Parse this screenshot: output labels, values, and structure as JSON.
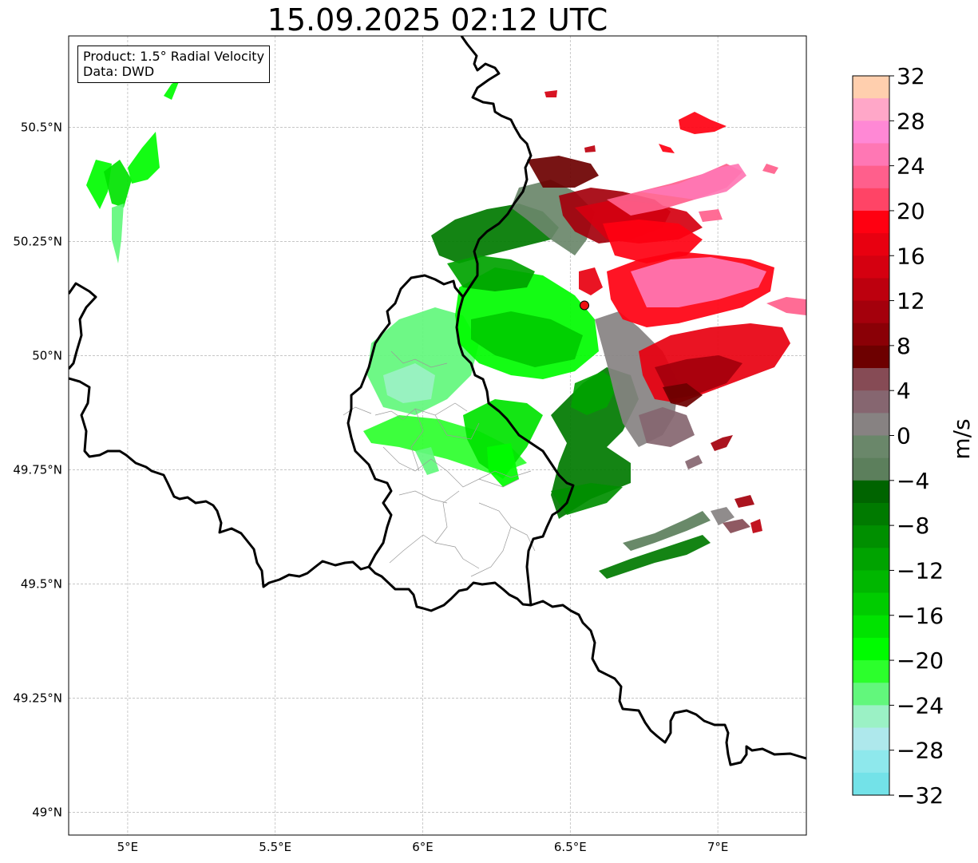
{
  "title": "15.09.2025 02:12 UTC",
  "info_box": {
    "product_line": "Product: 1.5° Radial Velocity",
    "data_line": "Data: DWD"
  },
  "map": {
    "extent": {
      "lon_min": 4.8,
      "lon_max": 7.3,
      "lat_min": 48.95,
      "lat_max": 50.7
    },
    "lon_ticks": [
      {
        "value": 5.0,
        "label": "5°E"
      },
      {
        "value": 5.5,
        "label": "5.5°E"
      },
      {
        "value": 6.0,
        "label": "6°E"
      },
      {
        "value": 6.5,
        "label": "6.5°E"
      },
      {
        "value": 7.0,
        "label": "7°E"
      }
    ],
    "lat_ticks": [
      {
        "value": 50.5,
        "label": "50.5°N"
      },
      {
        "value": 50.25,
        "label": "50.25°N"
      },
      {
        "value": 50.0,
        "label": "50°N"
      },
      {
        "value": 49.75,
        "label": "49.75°N"
      },
      {
        "value": 49.5,
        "label": "49.5°N"
      },
      {
        "value": 49.25,
        "label": "49.25°N"
      },
      {
        "value": 49.0,
        "label": "49°N"
      }
    ],
    "gridlines": true,
    "radar_site": {
      "lon": 6.548,
      "lat": 50.11,
      "color": "#ee1111"
    }
  },
  "colorbar": {
    "label": "m/s",
    "min": -32,
    "max": 32,
    "tick_labels": [
      "32",
      "28",
      "24",
      "20",
      "16",
      "12",
      "8",
      "4",
      "0",
      "−4",
      "−8",
      "−12",
      "−16",
      "−20",
      "−24",
      "−28",
      "−32"
    ],
    "tick_values": [
      32,
      28,
      24,
      20,
      16,
      12,
      8,
      4,
      0,
      -4,
      -8,
      -12,
      -16,
      -20,
      -24,
      -28,
      -32
    ],
    "colors_top_to_bottom": [
      "#ffcfae",
      "#ffa7c8",
      "#ff88d5",
      "#ff77b4",
      "#ff5f8c",
      "#ff4466",
      "#ff0011",
      "#e80010",
      "#d50010",
      "#bd000e",
      "#a4000c",
      "#8a0006",
      "#6d0000",
      "#864b55",
      "#866670",
      "#878282",
      "#6a876a",
      "#5c7f5c",
      "#006400",
      "#007a00",
      "#008f00",
      "#00a300",
      "#00b700",
      "#00cc00",
      "#00e300",
      "#00fc00",
      "#2cff2c",
      "#62f77c",
      "#9bf1c5",
      "#aee8ec",
      "#8ee8ec",
      "#73e2e8"
    ]
  }
}
